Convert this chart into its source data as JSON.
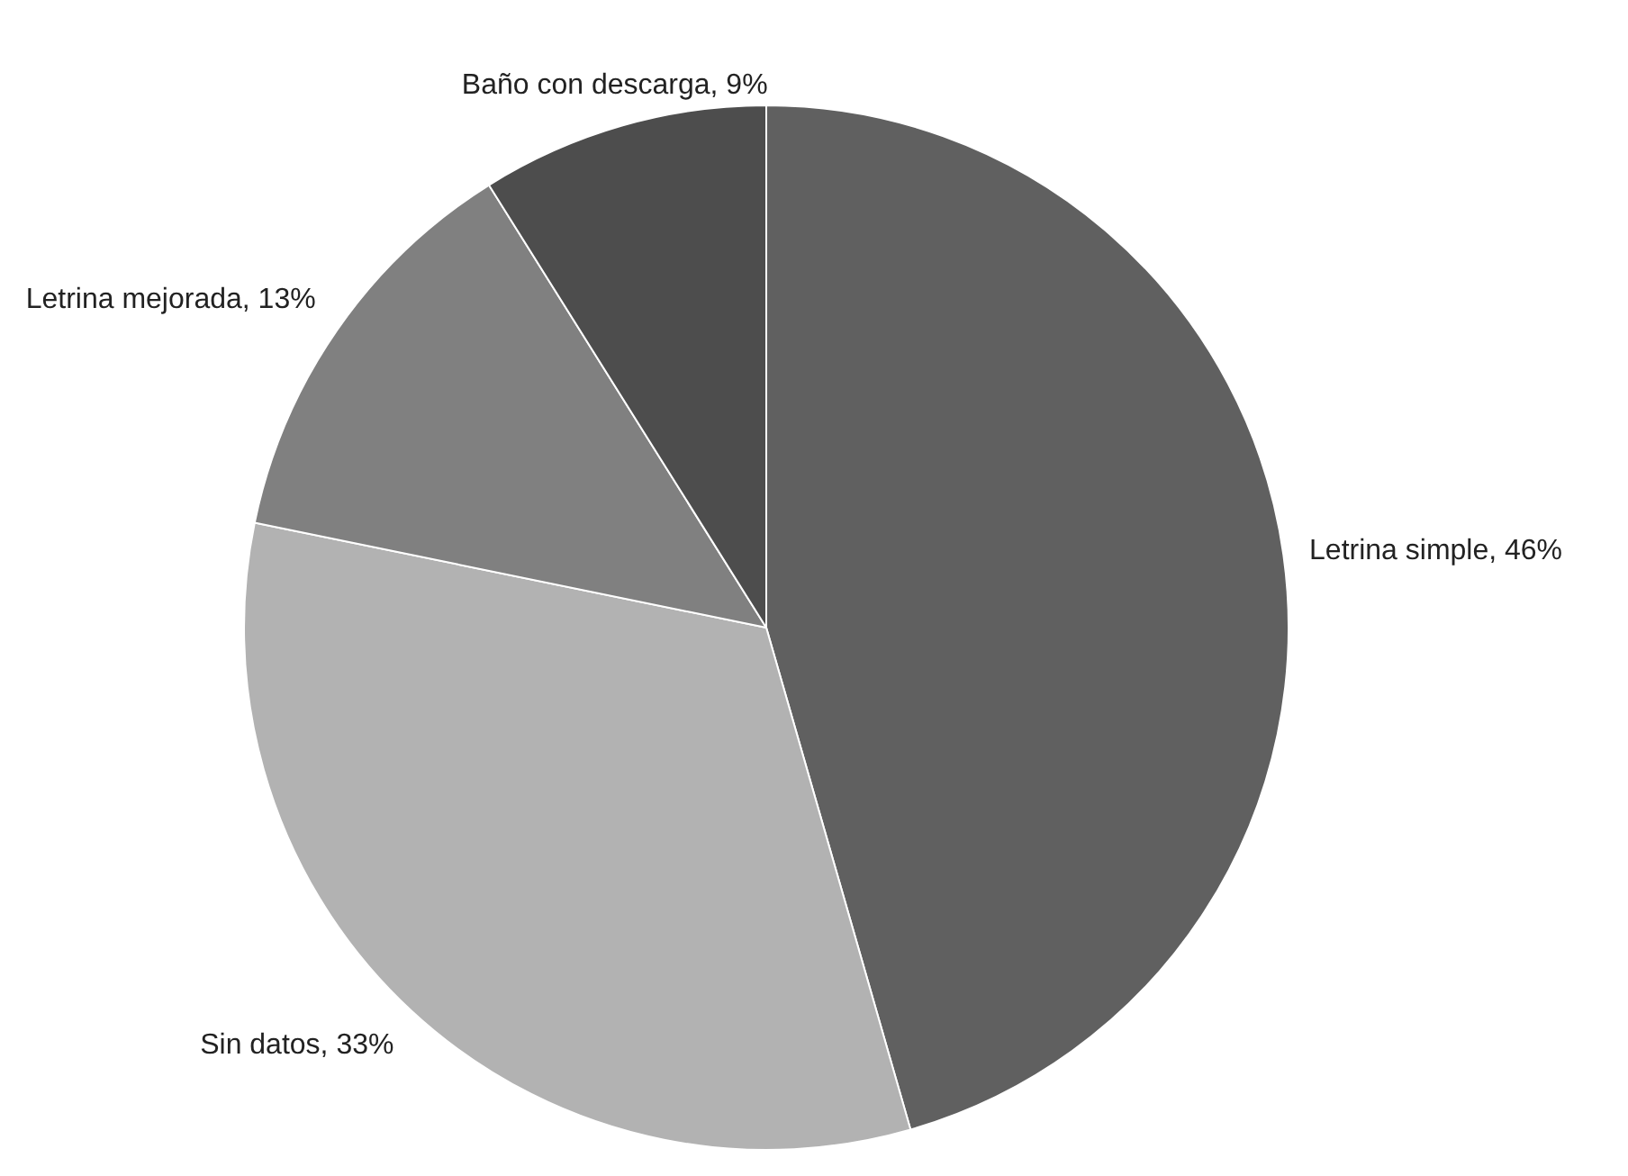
{
  "chart_data": {
    "type": "pie",
    "categories": [
      "Letrina simple",
      "Sin datos",
      "Letrina mejorada",
      "Baño con descarga"
    ],
    "values": [
      46,
      33,
      13,
      9
    ],
    "colors": [
      "#606060",
      "#b2b2b2",
      "#808080",
      "#4d4d4d"
    ],
    "value_labels": [
      "46%",
      "33%",
      "13%",
      "9%"
    ]
  }
}
